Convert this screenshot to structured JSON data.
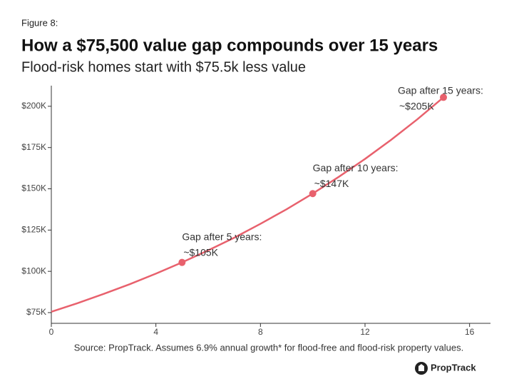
{
  "chart_data": {
    "type": "line",
    "figure_label": "Figure 8:",
    "title": "How a $75,500 value gap compounds over 15 years",
    "subtitle": "Flood-risk homes start with $75.5k less value",
    "x": [
      0,
      1,
      2,
      3,
      4,
      5,
      6,
      7,
      8,
      9,
      10,
      11,
      12,
      13,
      14,
      15
    ],
    "series": [
      {
        "name": "Value gap",
        "color": "#e8616d",
        "values": [
          75500,
          80700,
          86300,
          92200,
          98600,
          105400,
          112700,
          120400,
          128800,
          137600,
          147100,
          157300,
          168100,
          179700,
          192100,
          205400
        ]
      }
    ],
    "markers": {
      "x": [
        5,
        10,
        15
      ],
      "values": [
        105400,
        147100,
        205400
      ],
      "color": "#e8616d"
    },
    "annotations": [
      [
        "Gap after 5 years:",
        "~$105K"
      ],
      [
        "Gap after 10 years:",
        "~$147K"
      ],
      [
        "Gap after 15 years:",
        "~$205K"
      ]
    ],
    "xlim": [
      0,
      16.8
    ],
    "xticks": [
      0,
      4,
      8,
      12,
      16
    ],
    "ylim": [
      68500,
      212500
    ],
    "yticks": [
      {
        "value": 75000,
        "label": "$75K"
      },
      {
        "value": 100000,
        "label": "$100K"
      },
      {
        "value": 125000,
        "label": "$125K"
      },
      {
        "value": 150000,
        "label": "$150K"
      },
      {
        "value": 175000,
        "label": "$175K"
      },
      {
        "value": 200000,
        "label": "$200K"
      }
    ],
    "grid": false,
    "source": "Source: PropTrack. Assumes 6.9% annual growth* for flood-free and flood-risk property values.",
    "brand": "PropTrack"
  }
}
